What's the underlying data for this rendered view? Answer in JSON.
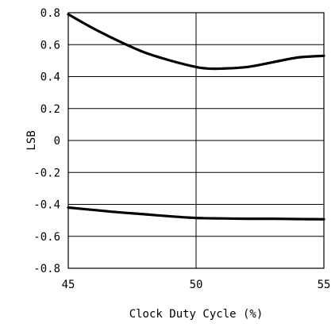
{
  "chart_data": {
    "type": "line",
    "title": "",
    "xlabel": "Clock Duty Cycle (%)",
    "ylabel": "LSB",
    "xlim": [
      45,
      55
    ],
    "ylim": [
      -0.8,
      0.8
    ],
    "x_ticks": [
      45,
      50,
      55
    ],
    "x_tick_labels": [
      "45",
      "50",
      "55"
    ],
    "y_ticks": [
      0.8,
      0.6,
      0.4,
      0.2,
      0,
      -0.2,
      -0.4,
      -0.6,
      -0.8
    ],
    "y_tick_labels": [
      "0.8",
      "0.6",
      "0.4",
      "0.2",
      "0",
      "-0.2",
      "-0.4",
      "-0.6",
      "-0.8"
    ],
    "grid": true,
    "line_color": "#000000",
    "series": [
      {
        "x": [
          45,
          46,
          47,
          48,
          49,
          50,
          50.5,
          51,
          52,
          53,
          54,
          55
        ],
        "y": [
          0.79,
          0.7,
          0.62,
          0.55,
          0.5,
          0.46,
          0.45,
          0.45,
          0.46,
          0.49,
          0.52,
          0.53
        ]
      },
      {
        "x": [
          45,
          46,
          47,
          48,
          49,
          50,
          51,
          52,
          53,
          54,
          55
        ],
        "y": [
          -0.42,
          -0.435,
          -0.45,
          -0.462,
          -0.475,
          -0.485,
          -0.488,
          -0.49,
          -0.49,
          -0.492,
          -0.493
        ]
      }
    ]
  }
}
